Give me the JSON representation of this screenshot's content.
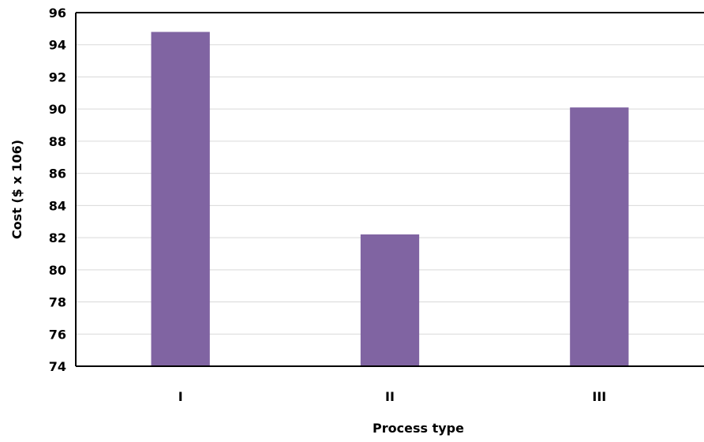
{
  "chart_data": {
    "type": "bar",
    "title": "",
    "xlabel": "Process type",
    "ylabel": "Cost ($ x 106)",
    "categories": [
      "I",
      "II",
      "III"
    ],
    "values": [
      94.8,
      82.2,
      90.1
    ],
    "ylim": [
      74,
      96
    ],
    "yticks": [
      74,
      76,
      78,
      80,
      82,
      84,
      86,
      88,
      90,
      92,
      94,
      96
    ],
    "grid": true,
    "legend": "none",
    "bar_color": "#8064a2"
  }
}
